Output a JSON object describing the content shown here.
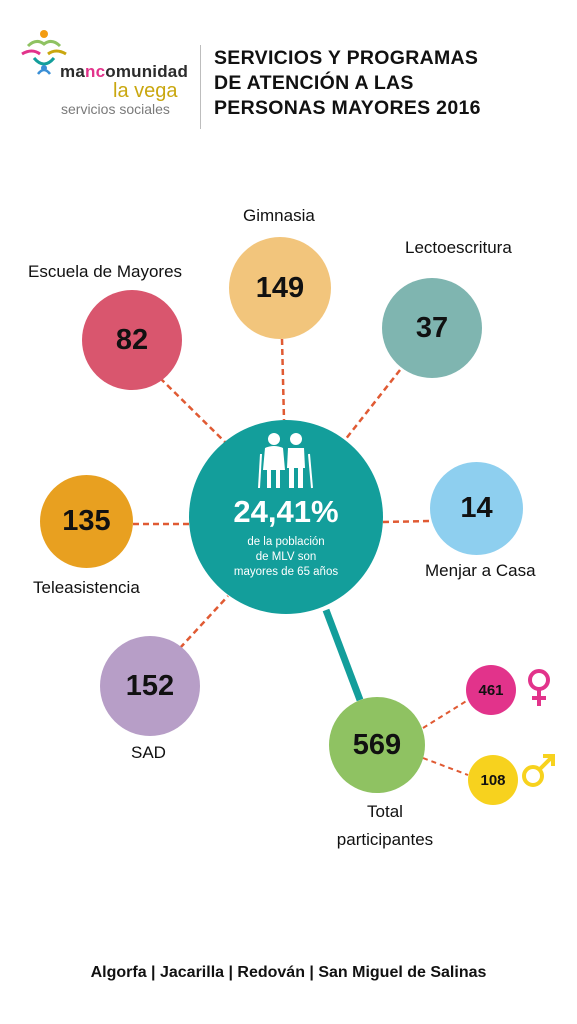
{
  "header": {
    "logo_line1_a": "ma",
    "logo_line1_b": "nc",
    "logo_line1_c": "omunidad",
    "logo_line2": "la vega",
    "logo_line3": "servicios sociales",
    "title_line1": "SERVICIOS Y PROGRAMAS",
    "title_line2": "DE ATENCIÓN A LAS",
    "title_line3": "PERSONAS MAYORES 2016"
  },
  "center": {
    "percent": "24,41%",
    "sub_line1": "de la población",
    "sub_line2": "de MLV son",
    "sub_line3": "mayores de 65 años",
    "icon": "elderly-couple-icon",
    "color": "#139e9b"
  },
  "programs": [
    {
      "name": "Escuela de Mayores",
      "value": "82",
      "color": "#d9566e"
    },
    {
      "name": "Gimnasia",
      "value": "149",
      "color": "#f2c57c"
    },
    {
      "name": "Lectoescritura",
      "value": "37",
      "color": "#7fb5b0"
    },
    {
      "name": "Menjar a Casa",
      "value": "14",
      "color": "#8ecfef"
    },
    {
      "name": "Teleasistencia",
      "value": "135",
      "color": "#e8a020"
    },
    {
      "name": "SAD",
      "value": "152",
      "color": "#b79ec7"
    }
  ],
  "total": {
    "value": "569",
    "label_line1": "Total",
    "label_line2": "participantes",
    "color": "#8fc262"
  },
  "gender": {
    "female": {
      "value": "461",
      "color": "#e2338b",
      "icon": "female-symbol-icon"
    },
    "male": {
      "value": "108",
      "color": "#f7d21e",
      "icon": "male-symbol-icon"
    }
  },
  "footer": {
    "text": "Algorfa  | Jacarilla | Redován | San Miguel de Salinas"
  },
  "line_color": "#e05a33"
}
